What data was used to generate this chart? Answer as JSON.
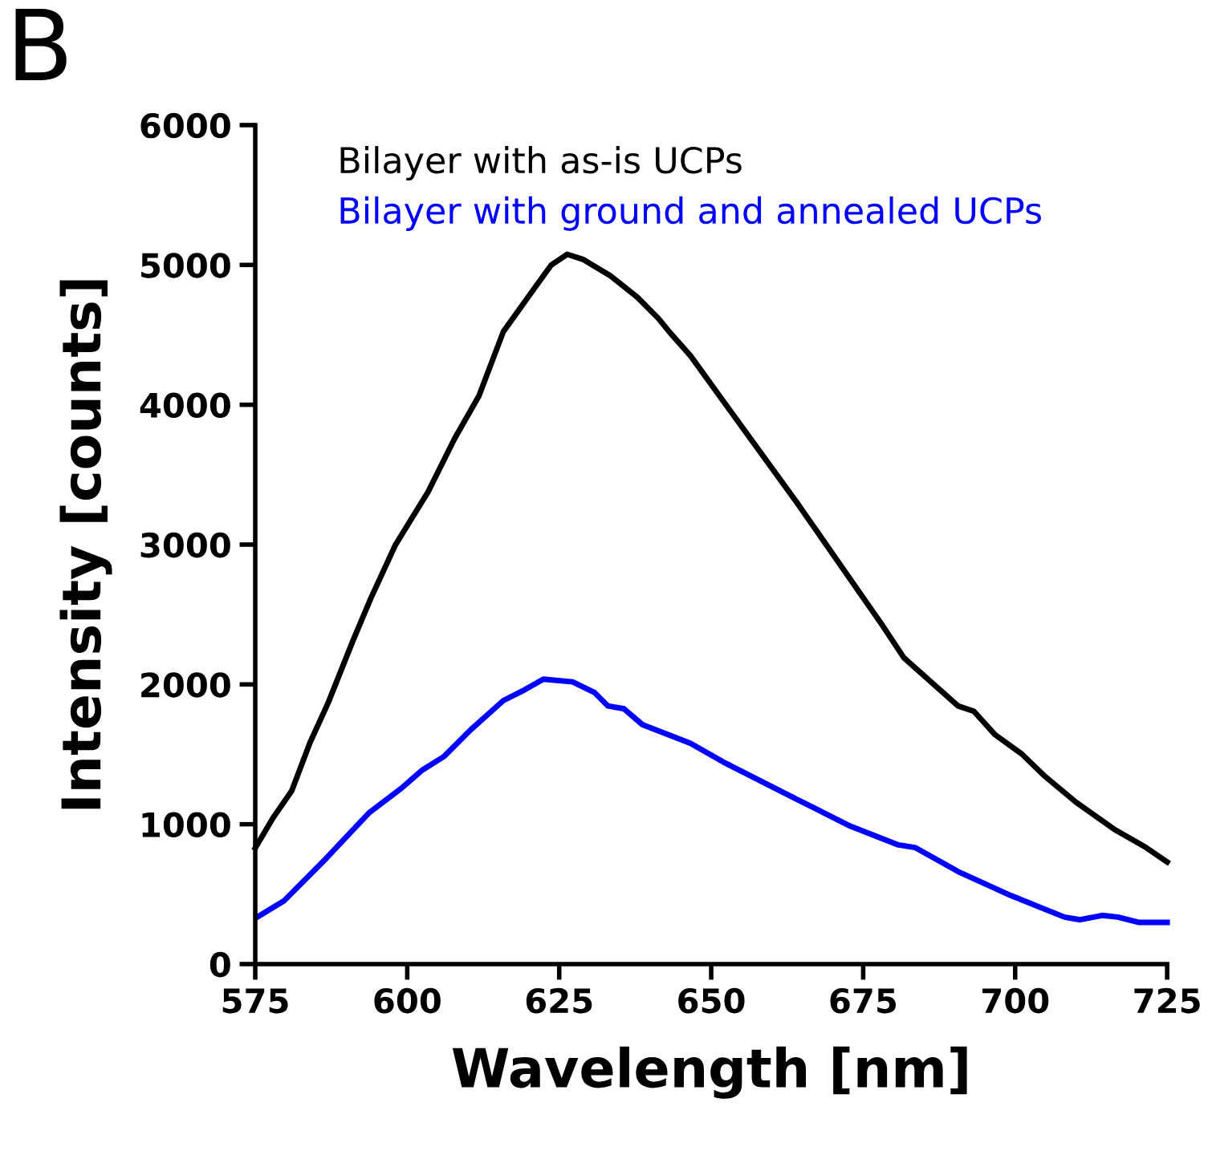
{
  "chart_data": {
    "type": "line",
    "xlabel": "Wavelength [nm]",
    "ylabel": "Intensity [counts]",
    "annotations": [
      "B"
    ],
    "xlim": [
      575,
      725
    ],
    "xticks": [
      575,
      600,
      625,
      650,
      675,
      700,
      725
    ],
    "ylim": [
      0,
      6000
    ],
    "yticks": [
      0,
      1000,
      2000,
      3000,
      4000,
      5000,
      6000
    ],
    "grid": false,
    "legend": "top",
    "marker": "none",
    "line_style": "solid",
    "series": [
      {
        "name": "Bilayer with as-is UCPs",
        "color": "#000000",
        "x": [
          575,
          577.9,
          581,
          584,
          587,
          591,
          594,
          598,
          603.4,
          607.8,
          611.8,
          615.8,
          620.2,
          623.7,
          626.3,
          629,
          633.4,
          637.8,
          641.3,
          643.1,
          646.6,
          652,
          664.1,
          678.2,
          681.7,
          690.6,
          693.2,
          696.7,
          701.1,
          704.7,
          710,
          716.2,
          721.5,
          725
        ],
        "values": [
          830,
          1044,
          1239,
          1583,
          1869,
          2305,
          2615,
          2993,
          3375,
          3758,
          4064,
          4522,
          4790,
          5000,
          5076,
          5038,
          4923,
          4771,
          4618,
          4522,
          4350,
          4025,
          3300,
          2420,
          2190,
          1846,
          1808,
          1640,
          1502,
          1350,
          1158,
          967,
          834,
          730
        ]
      },
      {
        "name": "Bilayer with ground and annealed UCPs",
        "color": "#0000ff",
        "x": [
          575.3,
          579.7,
          586.7,
          593.7,
          599,
          602.5,
          606,
          610.4,
          615.8,
          619.3,
          622.4,
          627.2,
          630.8,
          633,
          635.6,
          638.7,
          646.6,
          652,
          664.1,
          672.9,
          680.8,
          683.5,
          690.6,
          699.3,
          708.1,
          710.7,
          714.3,
          716.9,
          720.4,
          725
        ],
        "values": [
          336,
          451,
          757,
          1081,
          1256,
          1388,
          1483,
          1674,
          1884,
          1961,
          2038,
          2018,
          1942,
          1846,
          1827,
          1712,
          1579,
          1445,
          1178,
          986,
          852,
          834,
          662,
          490,
          336,
          317,
          348,
          336,
          298,
          298
        ]
      }
    ]
  }
}
